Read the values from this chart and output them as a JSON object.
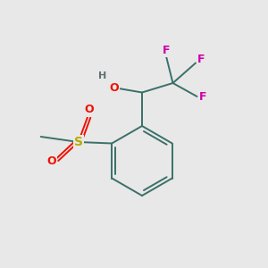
{
  "background_color": "#e8e8e8",
  "bond_color": "#3a7068",
  "bond_width": 1.4,
  "atom_colors": {
    "C": "#3a7068",
    "H": "#607070",
    "O": "#ee1100",
    "S": "#bbaa00",
    "F": "#cc00aa"
  },
  "font_size": 8.5,
  "fig_size": [
    3.0,
    3.0
  ],
  "dpi": 100
}
